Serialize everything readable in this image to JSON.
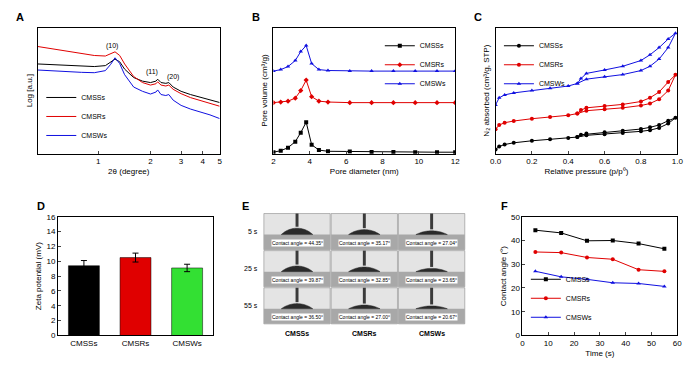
{
  "chart_data": [
    {
      "panel": "A",
      "type": "line",
      "log": true,
      "grid": false,
      "tick_labels": "x",
      "legend": "lower left",
      "x_label": "2θ (degree)",
      "y_label": "Log [a.u.]",
      "xlim": [
        0.45,
        5
      ],
      "xticks": [
        1,
        2,
        3,
        4,
        5
      ],
      "ylim": [
        1,
        10000
      ],
      "x": [
        0.45,
        0.55,
        0.65,
        0.8,
        0.95,
        1.1,
        1.18,
        1.25,
        1.33,
        1.42,
        1.6,
        1.8,
        2.0,
        2.15,
        2.2,
        2.3,
        2.45,
        2.55,
        2.7,
        3.0,
        3.4,
        3.9,
        4.4,
        5.0
      ],
      "series": [
        {
          "name": "CMSSs",
          "color": "#000000",
          "values": [
            700,
            660,
            630,
            600,
            580,
            620,
            780,
            1000,
            820,
            480,
            260,
            200,
            180,
            200,
            230,
            180,
            170,
            180,
            130,
            95,
            75,
            62,
            52,
            42
          ]
        },
        {
          "name": "CMSRs",
          "color": "#e00000",
          "values": [
            2500,
            2100,
            1800,
            1500,
            1300,
            1250,
            1450,
            1700,
            1300,
            700,
            280,
            180,
            150,
            165,
            190,
            150,
            140,
            150,
            110,
            80,
            60,
            48,
            40,
            32
          ]
        },
        {
          "name": "CMSWs",
          "color": "#1010e0",
          "values": [
            450,
            420,
            400,
            380,
            370,
            430,
            680,
            1100,
            720,
            320,
            130,
            95,
            78,
            90,
            105,
            75,
            70,
            75,
            50,
            34,
            26,
            21,
            17,
            13
          ]
        }
      ],
      "annotations": [
        {
          "text": "(10)",
          "x": 1.2,
          "y": 2600
        },
        {
          "text": "(11)",
          "x": 2.05,
          "y": 400
        },
        {
          "text": "(20)",
          "x": 2.7,
          "y": 280
        }
      ]
    },
    {
      "panel": "B",
      "type": "line",
      "grid": false,
      "tick_labels": "x",
      "legend": "upper right",
      "x_label": "Pore diameter (nm)",
      "y_label": "Pore volume (cm³/g)",
      "xlim": [
        2,
        12
      ],
      "xticks": [
        2,
        4,
        6,
        8,
        10,
        12
      ],
      "ylim": [
        0,
        4.2
      ],
      "x": [
        2.0,
        2.4,
        2.8,
        3.2,
        3.5,
        3.8,
        4.1,
        4.5,
        5.0,
        6.2,
        7.4,
        8.6,
        9.8,
        11.0,
        12.0
      ],
      "series": [
        {
          "name": "CMSSs",
          "color": "#000000",
          "marker": "square",
          "values": [
            0.05,
            0.1,
            0.2,
            0.4,
            0.7,
            1.05,
            0.3,
            0.12,
            0.08,
            0.07,
            0.06,
            0.06,
            0.05,
            0.05,
            0.05
          ]
        },
        {
          "name": "CMSRs",
          "color": "#e00000",
          "marker": "diamond",
          "values": [
            1.7,
            1.72,
            1.75,
            1.85,
            2.1,
            2.45,
            1.9,
            1.75,
            1.72,
            1.7,
            1.7,
            1.7,
            1.7,
            1.7,
            1.7
          ]
        },
        {
          "name": "CMSWs",
          "color": "#1010e0",
          "marker": "triangle-up",
          "values": [
            2.75,
            2.8,
            2.9,
            3.1,
            3.4,
            3.6,
            3.0,
            2.8,
            2.77,
            2.75,
            2.75,
            2.75,
            2.75,
            2.75,
            2.75
          ]
        }
      ]
    },
    {
      "panel": "C",
      "type": "line",
      "grid": false,
      "tick_labels": "x",
      "legend": "upper left",
      "x_label": "Relative pressure (p/p⁰)",
      "y_label": "N₂ absorbed (cm³/g, STP)",
      "xlim": [
        0,
        1
      ],
      "xticks": [
        {
          "value": 0,
          "label": "0.0"
        },
        0.2,
        0.4,
        0.6,
        0.8,
        {
          "value": 1,
          "label": "1.0"
        }
      ],
      "ylim": [
        0,
        440
      ],
      "x": [
        0.0,
        0.02,
        0.05,
        0.1,
        0.2,
        0.3,
        0.4,
        0.45,
        0.5,
        0.6,
        0.7,
        0.8,
        0.85,
        0.9,
        0.95,
        0.99,
        0.95,
        0.9,
        0.85,
        0.8,
        0.7,
        0.6,
        0.5,
        0.47,
        0.45
      ],
      "series": [
        {
          "name": "CMSSs",
          "color": "#000000",
          "marker": "circle",
          "values": [
            15,
            25,
            32,
            38,
            45,
            50,
            55,
            58,
            64,
            68,
            72,
            78,
            82,
            90,
            105,
            125,
            115,
            100,
            92,
            86,
            80,
            75,
            70,
            66,
            58
          ]
        },
        {
          "name": "CMSRs",
          "color": "#e00000",
          "marker": "circle",
          "values": [
            85,
            100,
            108,
            114,
            122,
            128,
            134,
            140,
            150,
            155,
            160,
            168,
            175,
            190,
            220,
            275,
            250,
            215,
            195,
            182,
            172,
            166,
            160,
            152,
            140
          ]
        },
        {
          "name": "CMSWs",
          "color": "#1010e0",
          "marker": "triangle-up",
          "values": [
            170,
            195,
            205,
            212,
            220,
            228,
            236,
            245,
            260,
            268,
            276,
            290,
            305,
            330,
            370,
            420,
            400,
            370,
            345,
            325,
            305,
            292,
            280,
            262,
            245
          ]
        }
      ]
    },
    {
      "panel": "D",
      "type": "bar",
      "grid": false,
      "y_label": "Zeta potential (mV)",
      "categories": [
        "CMSSs",
        "CMSRs",
        "CMSWs"
      ],
      "values": [
        9.4,
        10.5,
        9.1
      ],
      "errors": [
        0.7,
        0.6,
        0.5
      ],
      "colors": [
        "#000000",
        "#e00000",
        "#33e033"
      ],
      "ylim": [
        0,
        16
      ],
      "yticks": [
        0,
        2,
        4,
        6,
        8,
        10,
        12,
        14,
        16
      ]
    },
    {
      "panel": "E",
      "type": "image_grid",
      "rows": [
        "5 s",
        "25 s",
        "55 s"
      ],
      "columns": [
        "CMSSs",
        "CMSRs",
        "CMSWs"
      ],
      "cells": [
        [
          {
            "angle": 44.35,
            "label": "Contact angle = 44.35°"
          },
          {
            "angle": 35.17,
            "label": "Contact angle = 35.17°"
          },
          {
            "angle": 27.04,
            "label": "Contact angle = 27.04°"
          }
        ],
        [
          {
            "angle": 39.87,
            "label": "Contact angle = 39.87°"
          },
          {
            "angle": 32.85,
            "label": "Contact angle = 32.85°"
          },
          {
            "angle": 23.65,
            "label": "Contact angle = 23.65°"
          }
        ],
        [
          {
            "angle": 36.5,
            "label": "Contact angle = 36.50°"
          },
          {
            "angle": 27.0,
            "label": "Contact angle = 27.00°"
          },
          {
            "angle": 20.67,
            "label": "Contact angle = 20.67°"
          }
        ]
      ]
    },
    {
      "panel": "F",
      "type": "line",
      "grid": false,
      "legend": "lower left",
      "x_label": "Time (s)",
      "y_label": "Contact angle (°)",
      "xlim": [
        0,
        60
      ],
      "xticks": [
        0,
        10,
        20,
        30,
        40,
        50,
        60
      ],
      "ylim": [
        0,
        50
      ],
      "yticks": [
        0,
        10,
        20,
        30,
        40,
        50
      ],
      "x": [
        5,
        15,
        25,
        35,
        45,
        55
      ],
      "series": [
        {
          "name": "CMSSs",
          "color": "#000000",
          "marker": "square",
          "values": [
            44.35,
            43.2,
            39.87,
            40.0,
            38.7,
            36.5
          ]
        },
        {
          "name": "CMSRs",
          "color": "#e00000",
          "marker": "circle",
          "values": [
            35.17,
            34.9,
            32.85,
            32.1,
            27.7,
            27.0
          ]
        },
        {
          "name": "CMSWs",
          "color": "#1010e0",
          "marker": "triangle-up",
          "values": [
            27.04,
            24.7,
            23.65,
            22.2,
            21.9,
            20.67
          ]
        }
      ]
    }
  ]
}
